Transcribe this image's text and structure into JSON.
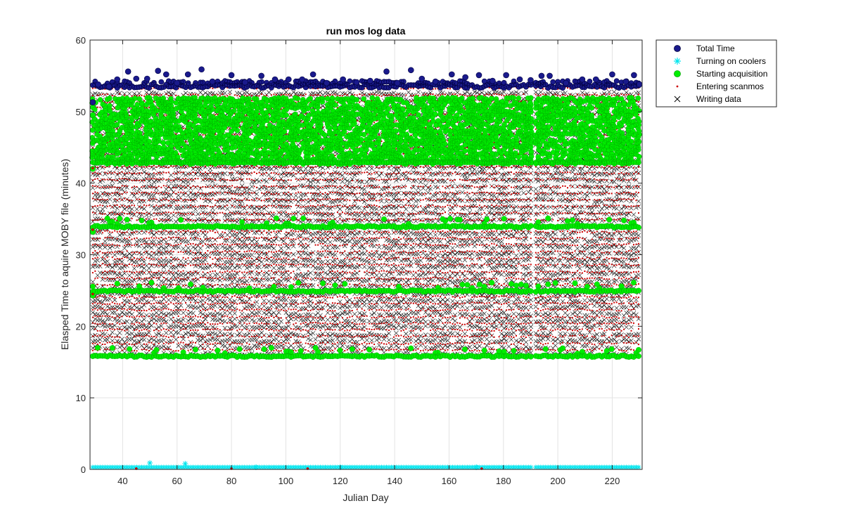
{
  "chart_data": {
    "type": "scatter",
    "title": "run mos log data",
    "xlabel": "Julian Day",
    "ylabel": "Elasped Time to aquire MOBY file (minutes)",
    "xlim": [
      28,
      231
    ],
    "ylim": [
      0,
      60
    ],
    "xticks": [
      40,
      60,
      80,
      100,
      120,
      140,
      160,
      180,
      200,
      220
    ],
    "yticks": [
      0,
      10,
      20,
      30,
      40,
      50,
      60
    ],
    "grid": true,
    "legend_position": "outside-top-right",
    "gap_days": [
      [
        190.5,
        191.5
      ]
    ],
    "series": [
      {
        "name": "Total Time",
        "marker": "circle",
        "color": "#1a1a8c",
        "description_range": [
          53.3,
          55.8
        ],
        "values": [
          {
            "x": 29,
            "y": 51.3
          },
          {
            "x": 31,
            "y": 53.8
          },
          {
            "x": 35,
            "y": 53.5
          },
          {
            "x": 38,
            "y": 54.5
          },
          {
            "x": 42,
            "y": 55.6
          },
          {
            "x": 45,
            "y": 54.6
          },
          {
            "x": 49,
            "y": 54.6
          },
          {
            "x": 53,
            "y": 55.7
          },
          {
            "x": 56,
            "y": 55.2
          },
          {
            "x": 60,
            "y": 54.0
          },
          {
            "x": 64,
            "y": 55.2
          },
          {
            "x": 69,
            "y": 55.9
          },
          {
            "x": 73,
            "y": 54.2
          },
          {
            "x": 80,
            "y": 55.1
          },
          {
            "x": 85,
            "y": 54.1
          },
          {
            "x": 91,
            "y": 55.0
          },
          {
            "x": 96,
            "y": 54.5
          },
          {
            "x": 101,
            "y": 54.5
          },
          {
            "x": 106,
            "y": 54.5
          },
          {
            "x": 110,
            "y": 55.2
          },
          {
            "x": 115,
            "y": 54.0
          },
          {
            "x": 121,
            "y": 54.5
          },
          {
            "x": 126,
            "y": 54.1
          },
          {
            "x": 131,
            "y": 54.3
          },
          {
            "x": 137,
            "y": 55.6
          },
          {
            "x": 141,
            "y": 54.0
          },
          {
            "x": 146,
            "y": 55.8
          },
          {
            "x": 150,
            "y": 54.6
          },
          {
            "x": 155,
            "y": 54.2
          },
          {
            "x": 161,
            "y": 55.2
          },
          {
            "x": 166,
            "y": 54.8
          },
          {
            "x": 171,
            "y": 55.1
          },
          {
            "x": 176,
            "y": 54.3
          },
          {
            "x": 181,
            "y": 55.1
          },
          {
            "x": 186,
            "y": 54.5
          },
          {
            "x": 190,
            "y": 54.4
          },
          {
            "x": 194,
            "y": 55.0
          },
          {
            "x": 197,
            "y": 55.0
          },
          {
            "x": 203,
            "y": 54.0
          },
          {
            "x": 209,
            "y": 54.5
          },
          {
            "x": 214,
            "y": 54.5
          },
          {
            "x": 220,
            "y": 55.2
          },
          {
            "x": 225,
            "y": 54.2
          },
          {
            "x": 228,
            "y": 55.1
          },
          {
            "x": 230,
            "y": 53.8
          }
        ]
      },
      {
        "name": "Turning on coolers",
        "marker": "asterisk",
        "color": "#00e5ee",
        "values": [
          {
            "x": 50,
            "y": 0.9
          },
          {
            "x": 63,
            "y": 0.8
          },
          {
            "x": 89,
            "y": 0.3
          },
          {
            "x": 120,
            "y": 0.3
          },
          {
            "x": 170,
            "y": 0.3
          }
        ],
        "baseline_y": 0.3
      },
      {
        "name": "Starting acquisition",
        "marker": "circle",
        "color": "#00ee00",
        "bands": [
          {
            "ymin": 42.8,
            "ymax": 52.2
          },
          {
            "ymin": 33.8,
            "ymax": 35.0
          },
          {
            "ymin": 24.8,
            "ymax": 26.0
          },
          {
            "ymin": 15.7,
            "ymax": 16.8
          }
        ],
        "values": [
          {
            "x": 29,
            "y": 49.5
          },
          {
            "x": 29,
            "y": 42.0
          },
          {
            "x": 29,
            "y": 33.2
          },
          {
            "x": 29,
            "y": 24.3
          }
        ]
      },
      {
        "name": "Entering scanmos",
        "marker": "point",
        "color": "#cc0000",
        "values": [
          {
            "x": 29,
            "y": 42.1
          },
          {
            "x": 29,
            "y": 33.5
          },
          {
            "x": 29,
            "y": 24.5
          },
          {
            "x": 45,
            "y": 0.1
          },
          {
            "x": 80,
            "y": 0.1
          },
          {
            "x": 108,
            "y": 0.1
          },
          {
            "x": 172,
            "y": 0.1
          }
        ],
        "levels": [
          53.3,
          52.3,
          51.4,
          50.5,
          49.6,
          48.6,
          47.7,
          46.8,
          45.8,
          44.9,
          44.0,
          43.0,
          42.3,
          41.4,
          40.5,
          39.5,
          38.6,
          37.7,
          36.8,
          35.8,
          34.9,
          34.0,
          33.2,
          32.3,
          31.4,
          30.4,
          29.5,
          28.6,
          27.6,
          26.7,
          25.8,
          24.9,
          24.1,
          23.2,
          22.3,
          21.3,
          20.4,
          19.5,
          18.6,
          17.6,
          16.7,
          15.8
        ]
      },
      {
        "name": "Writing data",
        "marker": "x",
        "color": "#000000",
        "levels": [
          52.5,
          51.6,
          50.7,
          49.7,
          48.8,
          47.9,
          46.9,
          46.0,
          45.1,
          44.1,
          43.2,
          42.2,
          41.3,
          40.4,
          39.4,
          38.5,
          37.6,
          36.6,
          35.7,
          34.8,
          33.8,
          32.9,
          32.0,
          31.1,
          30.1,
          29.2,
          28.3,
          27.3,
          26.4,
          25.5,
          24.5,
          23.6,
          22.7,
          21.7,
          20.8,
          19.9,
          18.9,
          18.0,
          17.1,
          16.1
        ]
      }
    ]
  }
}
